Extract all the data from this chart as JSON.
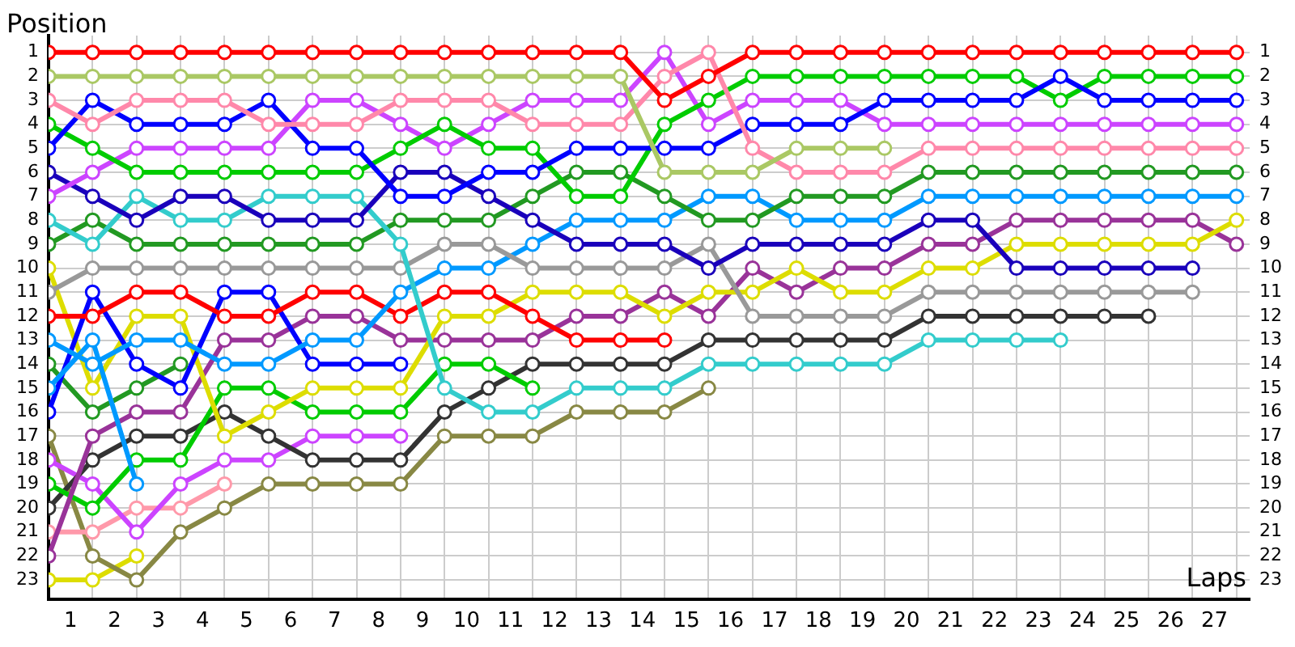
{
  "chart_data": {
    "type": "line",
    "ylabel": "Position",
    "xlabel": "Laps",
    "x": [
      0,
      1,
      2,
      3,
      4,
      5,
      6,
      7,
      8,
      9,
      10,
      11,
      12,
      13,
      14,
      15,
      16,
      17,
      18,
      19,
      20,
      21,
      22,
      23,
      24,
      25,
      26,
      27
    ],
    "xlim": [
      0,
      27.3
    ],
    "xticks": [
      {
        "value": 0,
        "label": null
      },
      {
        "value": 0.5,
        "label": "1"
      },
      {
        "value": 1,
        "label": null
      },
      {
        "value": 1.5,
        "label": "2"
      },
      {
        "value": 2,
        "label": null
      },
      {
        "value": 2.5,
        "label": "3"
      },
      {
        "value": 3,
        "label": null
      },
      {
        "value": 3.5,
        "label": "4"
      },
      {
        "value": 4,
        "label": null
      },
      {
        "value": 4.5,
        "label": "5"
      },
      {
        "value": 5,
        "label": null
      },
      {
        "value": 5.5,
        "label": "6"
      },
      {
        "value": 6,
        "label": null
      },
      {
        "value": 6.5,
        "label": "7"
      },
      {
        "value": 7,
        "label": null
      },
      {
        "value": 7.5,
        "label": "8"
      },
      {
        "value": 8,
        "label": null
      },
      {
        "value": 8.5,
        "label": "9"
      },
      {
        "value": 9,
        "label": null
      },
      {
        "value": 9.5,
        "label": "10"
      },
      {
        "value": 10,
        "label": null
      },
      {
        "value": 10.5,
        "label": "11"
      },
      {
        "value": 11,
        "label": null
      },
      {
        "value": 11.5,
        "label": "12"
      },
      {
        "value": 12,
        "label": null
      },
      {
        "value": 12.5,
        "label": "13"
      },
      {
        "value": 13,
        "label": null
      },
      {
        "value": 13.5,
        "label": "14"
      },
      {
        "value": 14,
        "label": null
      },
      {
        "value": 14.5,
        "label": "15"
      },
      {
        "value": 15,
        "label": null
      },
      {
        "value": 15.5,
        "label": "16"
      },
      {
        "value": 16,
        "label": null
      },
      {
        "value": 16.5,
        "label": "17"
      },
      {
        "value": 17,
        "label": null
      },
      {
        "value": 17.5,
        "label": "18"
      },
      {
        "value": 18,
        "label": null
      },
      {
        "value": 18.5,
        "label": "19"
      },
      {
        "value": 19,
        "label": null
      },
      {
        "value": 19.5,
        "label": "20"
      },
      {
        "value": 20,
        "label": null
      },
      {
        "value": 20.5,
        "label": "21"
      },
      {
        "value": 21,
        "label": null
      },
      {
        "value": 21.5,
        "label": "22"
      },
      {
        "value": 22,
        "label": null
      },
      {
        "value": 22.5,
        "label": "23"
      },
      {
        "value": 23,
        "label": null
      },
      {
        "value": 23.5,
        "label": "24"
      },
      {
        "value": 24,
        "label": null
      },
      {
        "value": 24.5,
        "label": "25"
      },
      {
        "value": 25,
        "label": null
      },
      {
        "value": 25.5,
        "label": "26"
      },
      {
        "value": 26,
        "label": null
      },
      {
        "value": 26.5,
        "label": "27"
      },
      {
        "value": 27,
        "label": null
      }
    ],
    "ylim": [
      23.8,
      0.3
    ],
    "yticks": [
      1,
      2,
      3,
      4,
      5,
      6,
      7,
      8,
      9,
      10,
      11,
      12,
      13,
      14,
      15,
      16,
      17,
      18,
      19,
      20,
      21,
      22,
      23
    ],
    "y2lim": [
      23.8,
      0.3
    ],
    "y2ticks": [
      1,
      2,
      3,
      4,
      5,
      6,
      7,
      8,
      9,
      10,
      11,
      12,
      13,
      14,
      15,
      16,
      17,
      18,
      19,
      20,
      21,
      22,
      23
    ],
    "grid": true,
    "legend": false,
    "marker": "circle",
    "line_style": "solid",
    "series": [
      {
        "color": "#ff0000",
        "values": [
          1,
          1,
          1,
          1,
          1,
          1,
          1,
          1,
          1,
          1,
          1,
          1,
          1,
          1,
          3,
          2,
          1,
          1,
          1,
          1,
          1,
          1,
          1,
          1,
          1,
          1,
          1,
          1
        ]
      },
      {
        "color": "#aac864",
        "values": [
          2,
          2,
          2,
          2,
          2,
          2,
          2,
          2,
          2,
          2,
          2,
          2,
          2,
          2,
          6,
          6,
          6,
          5,
          5,
          5,
          null,
          null,
          null,
          null,
          null,
          null,
          null,
          null
        ]
      },
      {
        "color": "#ff88aa",
        "values": [
          3,
          4,
          3,
          3,
          3,
          4,
          4,
          4,
          3,
          3,
          3,
          4,
          4,
          4,
          2,
          1,
          5,
          6,
          6,
          6,
          5,
          5,
          5,
          5,
          5,
          5,
          5,
          5
        ]
      },
      {
        "color": "#0000ff",
        "values": [
          5,
          3,
          4,
          4,
          4,
          3,
          5,
          5,
          7,
          7,
          6,
          6,
          5,
          5,
          5,
          5,
          4,
          4,
          4,
          3,
          3,
          3,
          3,
          2,
          3,
          3,
          3,
          3
        ]
      },
      {
        "color": "#00cc00",
        "values": [
          4,
          5,
          6,
          6,
          6,
          6,
          6,
          6,
          5,
          4,
          5,
          5,
          7,
          7,
          4,
          3,
          2,
          2,
          2,
          2,
          2,
          2,
          2,
          3,
          2,
          2,
          2,
          2
        ]
      },
      {
        "color": "#cc44ff",
        "values": [
          7,
          6,
          5,
          5,
          5,
          5,
          3,
          3,
          4,
          5,
          4,
          3,
          3,
          3,
          1,
          4,
          3,
          3,
          3,
          4,
          4,
          4,
          4,
          4,
          4,
          4,
          4,
          4
        ]
      },
      {
        "color": "#1a00bb",
        "values": [
          6,
          7,
          8,
          7,
          7,
          8,
          8,
          8,
          6,
          6,
          7,
          8,
          9,
          9,
          9,
          10,
          9,
          9,
          9,
          9,
          8,
          8,
          10,
          10,
          10,
          10,
          10,
          null
        ]
      },
      {
        "color": "#33cccc",
        "values": [
          8,
          9,
          7,
          8,
          8,
          7,
          7,
          7,
          9,
          15,
          16,
          16,
          15,
          15,
          15,
          14,
          14,
          14,
          14,
          14,
          13,
          13,
          13,
          13,
          null,
          null,
          null,
          null
        ]
      },
      {
        "color": "#229922",
        "values": [
          9,
          8,
          9,
          9,
          9,
          9,
          9,
          9,
          8,
          8,
          8,
          7,
          6,
          6,
          7,
          8,
          8,
          7,
          7,
          7,
          6,
          6,
          6,
          6,
          6,
          6,
          6,
          6
        ]
      },
      {
        "color": "#999999",
        "values": [
          11,
          10,
          10,
          10,
          10,
          10,
          10,
          10,
          10,
          9,
          9,
          10,
          10,
          10,
          10,
          9,
          12,
          12,
          12,
          12,
          11,
          11,
          11,
          11,
          11,
          11,
          11,
          null
        ]
      },
      {
        "color": "#0099ff",
        "values": [
          13,
          14,
          13,
          13,
          14,
          14,
          13,
          13,
          11,
          10,
          10,
          9,
          8,
          8,
          8,
          7,
          7,
          8,
          8,
          8,
          7,
          7,
          7,
          7,
          7,
          7,
          7,
          7
        ]
      },
      {
        "color": "#0099ff",
        "values": [
          15,
          13,
          19,
          null,
          null,
          null,
          null,
          null,
          null,
          null,
          null,
          null,
          null,
          null,
          null,
          null,
          null,
          null,
          null,
          null,
          null,
          null,
          null,
          null,
          null,
          null,
          null,
          null
        ]
      },
      {
        "color": "#ff0000",
        "values": [
          12,
          12,
          11,
          11,
          12,
          12,
          11,
          11,
          12,
          11,
          11,
          12,
          13,
          13,
          13,
          null,
          null,
          null,
          null,
          null,
          null,
          null,
          null,
          null,
          null,
          null,
          null,
          null
        ]
      },
      {
        "color": "#0000ff",
        "values": [
          16,
          11,
          14,
          15,
          11,
          11,
          14,
          14,
          14,
          null,
          null,
          null,
          null,
          null,
          null,
          null,
          null,
          null,
          null,
          null,
          null,
          null,
          null,
          null,
          null,
          null,
          null,
          null
        ]
      },
      {
        "color": "#dddd00",
        "values": [
          10,
          15,
          12,
          12,
          17,
          16,
          15,
          15,
          15,
          12,
          12,
          11,
          11,
          11,
          12,
          11,
          11,
          10,
          11,
          11,
          10,
          10,
          9,
          9,
          9,
          9,
          9,
          8
        ]
      },
      {
        "color": "#993399",
        "values": [
          22,
          17,
          16,
          16,
          13,
          13,
          12,
          12,
          13,
          13,
          13,
          13,
          12,
          12,
          11,
          12,
          10,
          11,
          10,
          10,
          9,
          9,
          8,
          8,
          8,
          8,
          8,
          9
        ]
      },
      {
        "color": "#229922",
        "values": [
          14,
          16,
          15,
          14,
          null,
          null,
          null,
          null,
          null,
          null,
          null,
          null,
          null,
          null,
          null,
          null,
          null,
          null,
          null,
          null,
          null,
          null,
          null,
          null,
          null,
          null,
          null,
          null
        ]
      },
      {
        "color": "#00cc00",
        "values": [
          19,
          20,
          18,
          18,
          15,
          15,
          16,
          16,
          16,
          14,
          14,
          15,
          null,
          null,
          null,
          null,
          null,
          null,
          null,
          null,
          null,
          null,
          null,
          null,
          null,
          null,
          null,
          null
        ]
      },
      {
        "color": "#333333",
        "values": [
          20,
          18,
          17,
          17,
          16,
          17,
          18,
          18,
          18,
          16,
          15,
          14,
          14,
          14,
          14,
          13,
          13,
          13,
          13,
          13,
          12,
          12,
          12,
          12,
          12,
          12,
          null,
          null
        ]
      },
      {
        "color": "#cc44ff",
        "values": [
          18,
          19,
          21,
          19,
          18,
          18,
          17,
          17,
          17,
          null,
          null,
          null,
          null,
          null,
          null,
          null,
          null,
          null,
          null,
          null,
          null,
          null,
          null,
          null,
          null,
          null,
          null,
          null
        ]
      },
      {
        "color": "#ff99aa",
        "values": [
          21,
          21,
          20,
          20,
          19,
          null,
          null,
          null,
          null,
          null,
          null,
          null,
          null,
          null,
          null,
          null,
          null,
          null,
          null,
          null,
          null,
          null,
          null,
          null,
          null,
          null,
          null,
          null
        ]
      },
      {
        "color": "#888844",
        "values": [
          17,
          22,
          23,
          21,
          20,
          19,
          19,
          19,
          19,
          17,
          17,
          17,
          16,
          16,
          16,
          15,
          null,
          null,
          null,
          null,
          null,
          null,
          null,
          null,
          null,
          null,
          null,
          null
        ]
      },
      {
        "color": "#dddd00",
        "values": [
          23,
          23,
          22,
          null,
          null,
          null,
          null,
          null,
          null,
          null,
          null,
          null,
          null,
          null,
          null,
          null,
          null,
          null,
          null,
          null,
          null,
          null,
          null,
          null,
          null,
          null,
          null,
          null
        ]
      }
    ]
  }
}
